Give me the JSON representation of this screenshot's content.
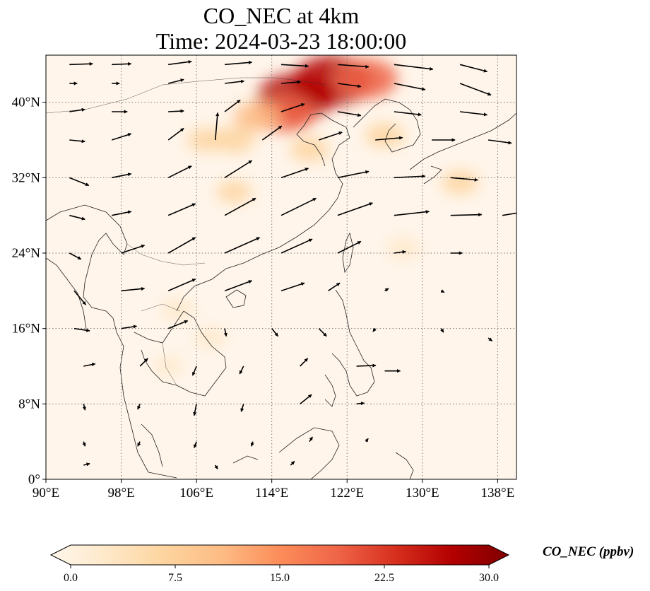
{
  "title_line1": "CO_NEC at 4km",
  "title_line2": "Time: 2024-03-23 18:00:00",
  "map": {
    "lon_range": [
      90,
      140
    ],
    "lat_range": [
      0,
      45
    ],
    "lon_ticks": [
      {
        "value": 90,
        "label": "90°E"
      },
      {
        "value": 98,
        "label": "98°E"
      },
      {
        "value": 106,
        "label": "106°E"
      },
      {
        "value": 114,
        "label": "114°E"
      },
      {
        "value": 122,
        "label": "122°E"
      },
      {
        "value": 130,
        "label": "130°E"
      },
      {
        "value": 138,
        "label": "138°E"
      }
    ],
    "lat_ticks": [
      {
        "value": 0,
        "label": "0°"
      },
      {
        "value": 8,
        "label": "8°N"
      },
      {
        "value": 16,
        "label": "16°N"
      },
      {
        "value": 24,
        "label": "24°N"
      },
      {
        "value": 32,
        "label": "32°N"
      },
      {
        "value": 40,
        "label": "40°N"
      }
    ],
    "gridlines": true,
    "background_color": "#fff5ea",
    "concentration_hotspots": [
      {
        "lon": 120.5,
        "lat": 42.3,
        "value": 28
      },
      {
        "lon": 124.0,
        "lat": 42.5,
        "value": 20
      },
      {
        "lon": 116.5,
        "lat": 40.5,
        "value": 26
      },
      {
        "lon": 115.5,
        "lat": 38.8,
        "value": 18
      },
      {
        "lon": 112.5,
        "lat": 38.5,
        "value": 12
      },
      {
        "lon": 110.0,
        "lat": 36.0,
        "value": 9
      },
      {
        "lon": 118.0,
        "lat": 35.0,
        "value": 8
      },
      {
        "lon": 126.0,
        "lat": 36.5,
        "value": 8
      },
      {
        "lon": 134.0,
        "lat": 31.5,
        "value": 7
      },
      {
        "lon": 107.0,
        "lat": 36.0,
        "value": 7
      },
      {
        "lon": 110.0,
        "lat": 30.5,
        "value": 6
      },
      {
        "lon": 104.0,
        "lat": 18.0,
        "value": 5
      },
      {
        "lon": 107.5,
        "lat": 15.0,
        "value": 4
      },
      {
        "lon": 103.0,
        "lat": 12.0,
        "value": 3
      },
      {
        "lon": 128.0,
        "lat": 24.5,
        "value": 5
      }
    ],
    "wind_vectors": [
      {
        "lon": 92.5,
        "lat": 44,
        "u": 3,
        "v": 0.1
      },
      {
        "lon": 97,
        "lat": 44,
        "u": 2.5,
        "v": 0.1
      },
      {
        "lon": 103,
        "lat": 44,
        "u": 3,
        "v": 0.4
      },
      {
        "lon": 109,
        "lat": 44,
        "u": 3.5,
        "v": 0.3
      },
      {
        "lon": 115,
        "lat": 44,
        "u": 3.5,
        "v": -0.2
      },
      {
        "lon": 121,
        "lat": 44,
        "u": 4,
        "v": -0.3
      },
      {
        "lon": 127,
        "lat": 44,
        "u": 5,
        "v": -0.6
      },
      {
        "lon": 134,
        "lat": 44,
        "u": 3.5,
        "v": -0.9
      },
      {
        "lon": 92.5,
        "lat": 42,
        "u": 1,
        "v": 0
      },
      {
        "lon": 97,
        "lat": 42,
        "u": 1,
        "v": 0
      },
      {
        "lon": 103,
        "lat": 42,
        "u": 2,
        "v": 0.5
      },
      {
        "lon": 109,
        "lat": 42,
        "u": 2.5,
        "v": 0.3
      },
      {
        "lon": 115,
        "lat": 42,
        "u": 2.5,
        "v": 0.2
      },
      {
        "lon": 121,
        "lat": 42,
        "u": 3,
        "v": -0.4
      },
      {
        "lon": 127,
        "lat": 42,
        "u": 4,
        "v": -0.8
      },
      {
        "lon": 134,
        "lat": 42,
        "u": 4,
        "v": -1.5
      },
      {
        "lon": 92.5,
        "lat": 39,
        "u": 2,
        "v": 0.3
      },
      {
        "lon": 97,
        "lat": 39,
        "u": 2,
        "v": 0
      },
      {
        "lon": 103,
        "lat": 39,
        "u": 2,
        "v": 0.1
      },
      {
        "lon": 109,
        "lat": 39,
        "u": 2,
        "v": 1.5
      },
      {
        "lon": 115,
        "lat": 39,
        "u": 3,
        "v": 1
      },
      {
        "lon": 121,
        "lat": 39,
        "u": 3,
        "v": -0.5
      },
      {
        "lon": 127,
        "lat": 39,
        "u": 3.5,
        "v": -0.4
      },
      {
        "lon": 134,
        "lat": 39,
        "u": 3.5,
        "v": -0.4
      },
      {
        "lon": 92.5,
        "lat": 36,
        "u": 2,
        "v": -0.2
      },
      {
        "lon": 97,
        "lat": 36,
        "u": 2.5,
        "v": 0.8
      },
      {
        "lon": 103,
        "lat": 36,
        "u": 2,
        "v": 1.5
      },
      {
        "lon": 108,
        "lat": 36,
        "u": 0.3,
        "v": 3.5
      },
      {
        "lon": 113,
        "lat": 36,
        "u": 2.5,
        "v": 1.8
      },
      {
        "lon": 119,
        "lat": 36,
        "u": 3,
        "v": 1
      },
      {
        "lon": 125,
        "lat": 36,
        "u": 3.5,
        "v": 0.3
      },
      {
        "lon": 131,
        "lat": 36,
        "u": 3,
        "v": 0
      },
      {
        "lon": 137,
        "lat": 36,
        "u": 3,
        "v": -0.4
      },
      {
        "lon": 92.5,
        "lat": 32,
        "u": 2.5,
        "v": -1
      },
      {
        "lon": 97,
        "lat": 32,
        "u": 2.5,
        "v": 0.5
      },
      {
        "lon": 103,
        "lat": 32,
        "u": 3,
        "v": 1.5
      },
      {
        "lon": 109,
        "lat": 32,
        "u": 3.5,
        "v": 2.2
      },
      {
        "lon": 115,
        "lat": 32,
        "u": 3.5,
        "v": 1.2
      },
      {
        "lon": 121,
        "lat": 32,
        "u": 4,
        "v": 0.8
      },
      {
        "lon": 127,
        "lat": 32,
        "u": 4,
        "v": 0.2
      },
      {
        "lon": 133,
        "lat": 32,
        "u": 3.5,
        "v": -0.3
      },
      {
        "lon": 92.5,
        "lat": 28,
        "u": 2,
        "v": -0.5
      },
      {
        "lon": 97,
        "lat": 28,
        "u": 2.5,
        "v": 0.5
      },
      {
        "lon": 103,
        "lat": 28,
        "u": 3.5,
        "v": 1.5
      },
      {
        "lon": 109,
        "lat": 28,
        "u": 4,
        "v": 2.2
      },
      {
        "lon": 115,
        "lat": 28,
        "u": 4.5,
        "v": 2.2
      },
      {
        "lon": 121,
        "lat": 28,
        "u": 4.5,
        "v": 1.6
      },
      {
        "lon": 127,
        "lat": 28,
        "u": 4.5,
        "v": 0.5
      },
      {
        "lon": 133,
        "lat": 28,
        "u": 4,
        "v": 0.1
      },
      {
        "lon": 138.5,
        "lat": 28,
        "u": 2.5,
        "v": 0.4
      },
      {
        "lon": 92.5,
        "lat": 24,
        "u": 1.5,
        "v": -0.8
      },
      {
        "lon": 98,
        "lat": 24,
        "u": 3,
        "v": 1
      },
      {
        "lon": 103,
        "lat": 24,
        "u": 3.5,
        "v": 2
      },
      {
        "lon": 109,
        "lat": 24,
        "u": 4.5,
        "v": 2
      },
      {
        "lon": 115,
        "lat": 24,
        "u": 4,
        "v": 1.8
      },
      {
        "lon": 121,
        "lat": 24,
        "u": 3,
        "v": 1.5
      },
      {
        "lon": 127,
        "lat": 24,
        "u": 1.5,
        "v": 0.2
      },
      {
        "lon": 133,
        "lat": 24,
        "u": 1.5,
        "v": 0
      },
      {
        "lon": 93,
        "lat": 20,
        "u": 1.5,
        "v": -1.8
      },
      {
        "lon": 98,
        "lat": 20,
        "u": 3,
        "v": 0.3
      },
      {
        "lon": 103,
        "lat": 20,
        "u": 3.5,
        "v": 1.5
      },
      {
        "lon": 109,
        "lat": 20,
        "u": 3.5,
        "v": 1.3
      },
      {
        "lon": 115,
        "lat": 20,
        "u": 3,
        "v": 1
      },
      {
        "lon": 120,
        "lat": 20,
        "u": 1.5,
        "v": 1
      },
      {
        "lon": 126,
        "lat": 20,
        "u": 0.5,
        "v": 0.3
      },
      {
        "lon": 132,
        "lat": 20,
        "u": 0.4,
        "v": -0.2
      },
      {
        "lon": 93,
        "lat": 16,
        "u": 2,
        "v": -0.3
      },
      {
        "lon": 98,
        "lat": 16,
        "u": 2,
        "v": 0.3
      },
      {
        "lon": 103,
        "lat": 16,
        "u": 2.5,
        "v": 1
      },
      {
        "lon": 109,
        "lat": 16,
        "u": 0.2,
        "v": -1
      },
      {
        "lon": 114,
        "lat": 16,
        "u": 0.8,
        "v": -1
      },
      {
        "lon": 119,
        "lat": 16,
        "u": 1,
        "v": -1
      },
      {
        "lon": 125,
        "lat": 16,
        "u": -0.3,
        "v": -0.4
      },
      {
        "lon": 132,
        "lat": 16,
        "u": 0.3,
        "v": -0.5
      },
      {
        "lon": 137,
        "lat": 15,
        "u": 0.5,
        "v": -0.4
      },
      {
        "lon": 94,
        "lat": 12,
        "u": 1.5,
        "v": 0.3
      },
      {
        "lon": 100,
        "lat": 12,
        "u": 1,
        "v": 1
      },
      {
        "lon": 106,
        "lat": 12,
        "u": -0.5,
        "v": -1.2
      },
      {
        "lon": 111,
        "lat": 12,
        "u": -0.5,
        "v": -1
      },
      {
        "lon": 117,
        "lat": 12,
        "u": 1,
        "v": 1
      },
      {
        "lon": 123,
        "lat": 12,
        "u": 2.5,
        "v": 0.1
      },
      {
        "lon": 126,
        "lat": 11.5,
        "u": 2,
        "v": 0
      },
      {
        "lon": 94,
        "lat": 8,
        "u": 0.2,
        "v": -0.8
      },
      {
        "lon": 100,
        "lat": 8,
        "u": -0.3,
        "v": -0.7
      },
      {
        "lon": 106,
        "lat": 8,
        "u": -0.3,
        "v": -1.5
      },
      {
        "lon": 111,
        "lat": 8,
        "u": -0.3,
        "v": -1
      },
      {
        "lon": 117,
        "lat": 8,
        "u": 1.5,
        "v": 1.2
      },
      {
        "lon": 123,
        "lat": 8,
        "u": 1,
        "v": 0.1
      },
      {
        "lon": 94,
        "lat": 4,
        "u": 0.2,
        "v": -0.6
      },
      {
        "lon": 100,
        "lat": 4,
        "u": -0.3,
        "v": -0.6
      },
      {
        "lon": 106,
        "lat": 4,
        "u": -0.3,
        "v": -0.8
      },
      {
        "lon": 112,
        "lat": 4,
        "u": -0.2,
        "v": -0.6
      },
      {
        "lon": 118,
        "lat": 4,
        "u": 0.4,
        "v": 0.6
      },
      {
        "lon": 124,
        "lat": 4,
        "u": 0.3,
        "v": 0.4
      },
      {
        "lon": 94,
        "lat": 1.5,
        "u": 0.8,
        "v": 0.2
      },
      {
        "lon": 108,
        "lat": 1.5,
        "u": 0.3,
        "v": -0.5
      },
      {
        "lon": 116,
        "lat": 1.5,
        "u": 0.5,
        "v": 0.5
      }
    ]
  },
  "colorbar": {
    "label": "CO_NEC (ppbv)",
    "min": 0,
    "max": 30,
    "ticks": [
      "0.0",
      "7.5",
      "15.0",
      "22.5",
      "30.0"
    ],
    "colormap": "OrRd",
    "colors": [
      "#fff7ec",
      "#fee8c8",
      "#fdd49e",
      "#fdbb84",
      "#fc8d59",
      "#ef6548",
      "#d7301f",
      "#b30000",
      "#7f0000"
    ]
  }
}
